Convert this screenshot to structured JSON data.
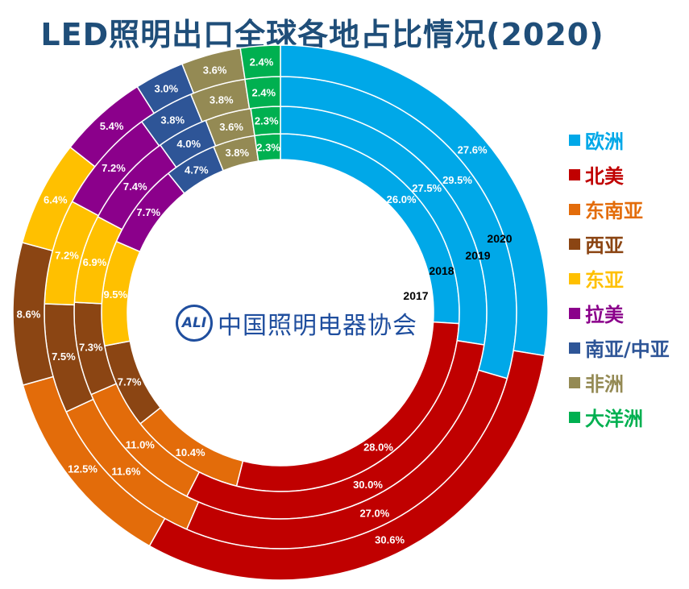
{
  "chart_data": {
    "type": "donut",
    "title": "LED照明出口全球各地占比情况(2020)",
    "categories": [
      "欧洲",
      "北美",
      "东南亚",
      "西亚",
      "东亚",
      "拉美",
      "南亚/中亚",
      "非洲",
      "大洋洲"
    ],
    "colors": [
      "#00a8e8",
      "#c00000",
      "#e36c0a",
      "#8b4513",
      "#ffc000",
      "#8b008b",
      "#2e5597",
      "#948a54",
      "#00b050"
    ],
    "series": [
      {
        "name": "2017",
        "values": [
          "26.0%",
          "28.0%",
          "10.4%",
          "7.7%",
          "9.5%",
          "7.7%",
          "4.7%",
          "3.8%",
          "2.3%"
        ]
      },
      {
        "name": "2018",
        "values": [
          "27.5%",
          "30.0%",
          "11.0%",
          "7.3%",
          "6.9%",
          "7.4%",
          "4.0%",
          "3.6%",
          "2.3%"
        ]
      },
      {
        "name": "2019",
        "values": [
          "29.5%",
          "27.0%",
          "11.6%",
          "7.5%",
          "7.2%",
          "7.2%",
          "3.8%",
          "3.8%",
          "2.4%"
        ]
      },
      {
        "name": "2020",
        "values": [
          "27.6%",
          "30.6%",
          "12.5%",
          "8.6%",
          "6.4%",
          "5.4%",
          "3.0%",
          "3.6%",
          "2.4%"
        ]
      }
    ],
    "legend_position": "right"
  },
  "logo": {
    "mark_text": "ALI",
    "text": "中国照明电器协会"
  }
}
